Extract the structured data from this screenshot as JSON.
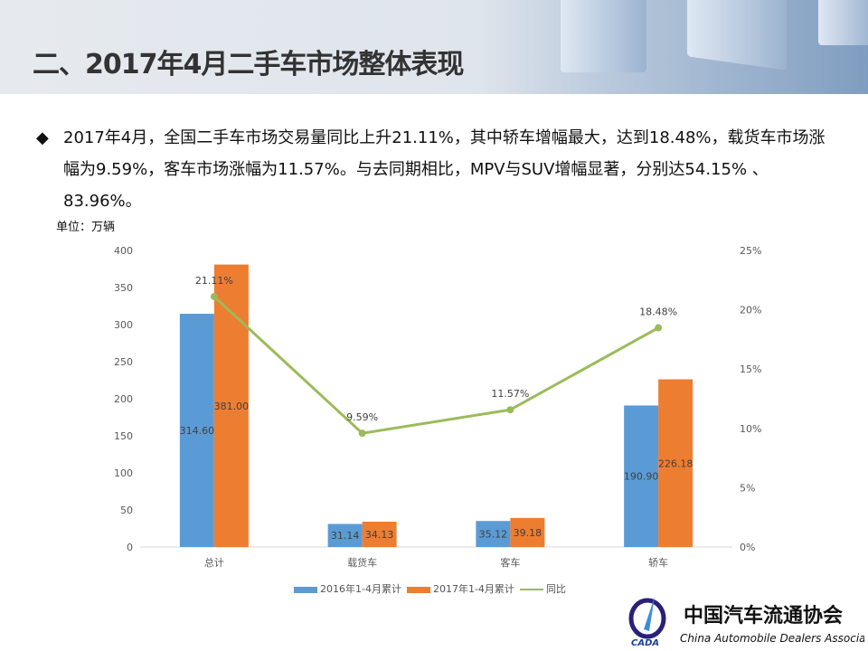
{
  "header": {
    "title": "二、2017年4月二手车市场整体表现"
  },
  "bullet": {
    "icon": "diamond-icon",
    "text": "2017年4月，全国二手车市场交易量同比上升21.11%，其中轿车增幅最大，达到18.48%，载货车市场涨幅为9.59%，客车市场涨幅为11.57%。与去同期相比，MPV与SUV增幅显著，分别达54.15% 、83.96%。"
  },
  "chart_data": {
    "type": "bar",
    "unit_label": "单位：万辆",
    "categories": [
      "总计",
      "载货车",
      "客车",
      "轿车"
    ],
    "series": [
      {
        "name": "2016年1-4月累计",
        "type": "bar",
        "axis": "left",
        "color": "#5b9bd5",
        "values": [
          314.6,
          31.14,
          35.12,
          190.9
        ],
        "labels": [
          "314.60",
          "31.14",
          "35.12",
          "190.90"
        ]
      },
      {
        "name": "2017年1-4月累计",
        "type": "bar",
        "axis": "left",
        "color": "#ed7d31",
        "values": [
          381.0,
          34.13,
          39.18,
          226.18
        ],
        "labels": [
          "381.00",
          "34.13",
          "39.18",
          "226.18"
        ]
      },
      {
        "name": "同比",
        "type": "line",
        "axis": "right",
        "color": "#9bbb59",
        "values": [
          21.11,
          9.59,
          11.57,
          18.48
        ],
        "labels": [
          "21.11%",
          "9.59%",
          "11.57%",
          "18.48%"
        ]
      }
    ],
    "ylim": [
      0,
      400
    ],
    "yticks": [
      "0",
      "50",
      "100",
      "150",
      "200",
      "250",
      "300",
      "350",
      "400"
    ],
    "y2lim": [
      0,
      25
    ],
    "y2ticks": [
      "0%",
      "5%",
      "10%",
      "15%",
      "20%",
      "25%"
    ],
    "grid": false,
    "legend": "bottom"
  },
  "logo": {
    "cn": "中国汽车流通协会",
    "en": "China Automobile Dealers Association",
    "abbr": "CADA"
  }
}
